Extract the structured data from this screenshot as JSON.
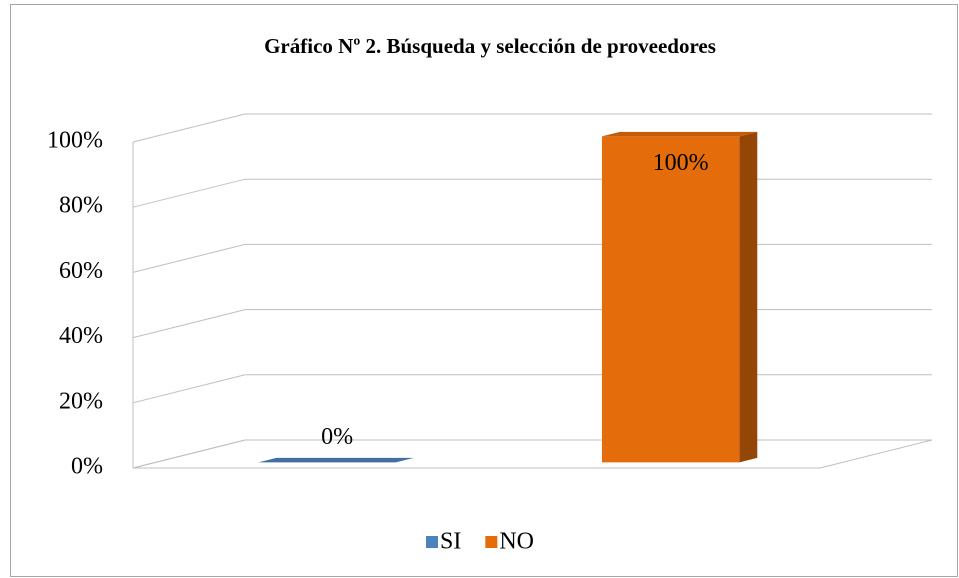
{
  "chart_data": {
    "type": "bar3d",
    "title": "Gráfico Nº 2. Búsqueda y selección de proveedores",
    "categories": [
      "SI",
      "NO"
    ],
    "values": [
      0,
      100
    ],
    "value_labels": [
      "0%",
      "100%"
    ],
    "colors": [
      "#4f81bd",
      "#e46c0a"
    ],
    "ylim": [
      0,
      100
    ],
    "yticks": [
      {
        "value": 0,
        "label": "0%"
      },
      {
        "value": 20,
        "label": "20%"
      },
      {
        "value": 40,
        "label": "40%"
      },
      {
        "value": 60,
        "label": "60%"
      },
      {
        "value": 80,
        "label": "80%"
      },
      {
        "value": 100,
        "label": "100%"
      }
    ],
    "grid": true,
    "legend": "bottom"
  }
}
